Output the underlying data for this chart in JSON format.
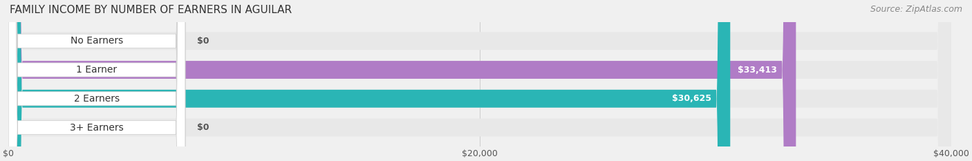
{
  "title": "FAMILY INCOME BY NUMBER OF EARNERS IN AGUILAR",
  "source": "Source: ZipAtlas.com",
  "categories": [
    "No Earners",
    "1 Earner",
    "2 Earners",
    "3+ Earners"
  ],
  "values": [
    0,
    33413,
    30625,
    0
  ],
  "bar_colors": [
    "#a8b8e8",
    "#b07cc6",
    "#2ab5b5",
    "#a8b8e8"
  ],
  "label_colors": [
    "#555555",
    "#ffffff",
    "#ffffff",
    "#555555"
  ],
  "value_labels": [
    "$0",
    "$33,413",
    "$30,625",
    "$0"
  ],
  "xlim": [
    0,
    40000
  ],
  "xticks": [
    0,
    20000,
    40000
  ],
  "xtick_labels": [
    "$0",
    "$20,000",
    "$40,000"
  ],
  "background_color": "#f0f0f0",
  "bar_bg_color": "#e8e8e8",
  "title_fontsize": 11,
  "source_fontsize": 9,
  "label_fontsize": 10,
  "value_fontsize": 9,
  "bar_height": 0.62,
  "figsize": [
    14.06,
    2.33
  ]
}
